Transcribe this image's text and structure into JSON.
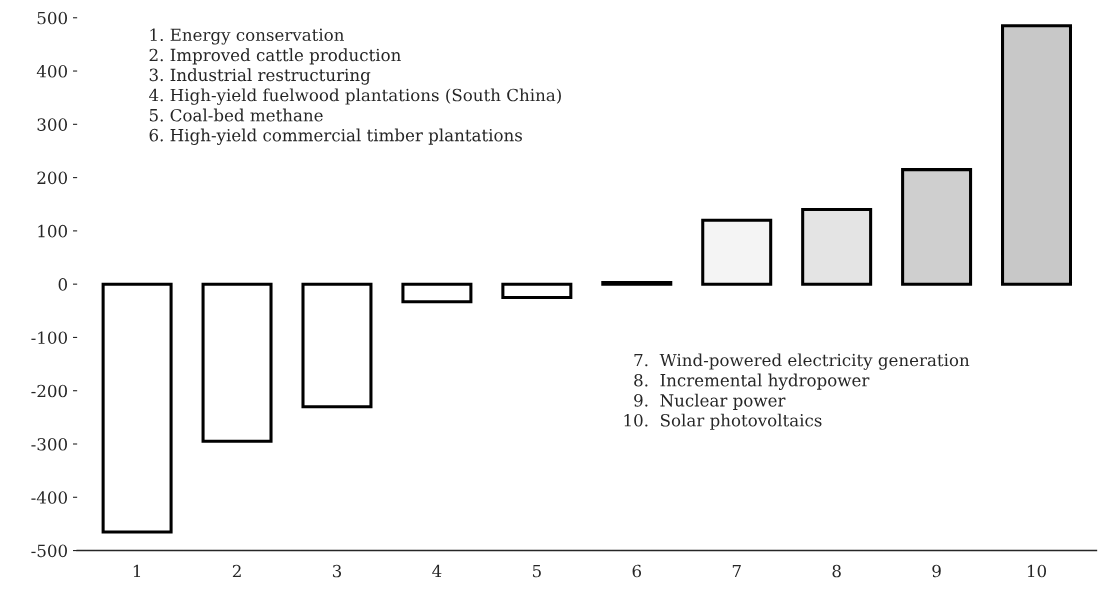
{
  "chart_data": {
    "type": "bar",
    "categories": [
      "1",
      "2",
      "3",
      "4",
      "5",
      "6",
      "7",
      "8",
      "9",
      "10"
    ],
    "values": [
      -465,
      -295,
      -230,
      -33,
      -25,
      3,
      120,
      140,
      215,
      485
    ],
    "colors": [
      "#ffffff",
      "#ffffff",
      "#ffffff",
      "#ffffff",
      "#ffffff",
      "#ffffff",
      "#f4f4f4",
      "#e4e4e4",
      "#cfcfcf",
      "#c8c8c8"
    ],
    "ylim": [
      -500,
      500
    ],
    "yticks": [
      -500,
      -400,
      -300,
      -200,
      -100,
      0,
      100,
      200,
      300,
      400,
      500
    ],
    "grid": false,
    "legend": false,
    "annotations": [
      "1. Energy conservation\n2. Improved cattle production\n3. Industrial restructuring\n4. High-yield fuelwood plantations (South China)\n5. Coal-bed methane\n6. High-yield commercial timber plantations",
      "  7.  Wind-powered electricity generation\n  8.  Incremental hydropower\n  9.  Nuclear power\n10.  Solar photovoltaics"
    ]
  }
}
